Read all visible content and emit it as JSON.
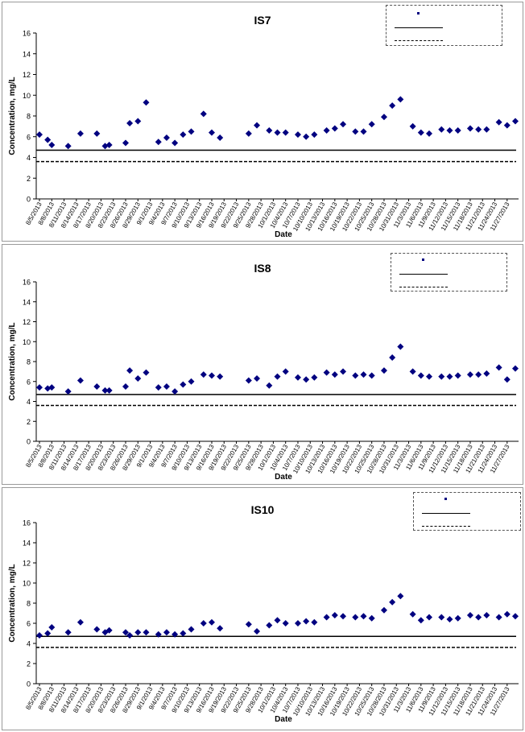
{
  "chart_data": [
    {
      "type": "scatter",
      "title": "IS7",
      "xlabel": "Date",
      "ylabel": "Concentration, mg/L",
      "ylim": [
        0,
        16
      ],
      "yticks": [
        0,
        2,
        4,
        6,
        8,
        10,
        12,
        14,
        16
      ],
      "x_tick_labels": [
        "8/5/2013",
        "8/8/2013",
        "8/11/2013",
        "8/14/2013",
        "8/17/2013",
        "8/20/2013",
        "8/23/2013",
        "8/26/2013",
        "8/29/2013",
        "9/1/2013",
        "9/4/2013",
        "9/7/2013",
        "9/10/2013",
        "9/13/2013",
        "9/16/2013",
        "9/19/2013",
        "9/22/2013",
        "9/25/2013",
        "9/28/2013",
        "10/1/2013",
        "10/4/2013",
        "10/7/2013",
        "10/10/2013",
        "10/13/2013",
        "10/16/2013",
        "10/19/2013",
        "10/22/2013",
        "10/25/2013",
        "10/28/2013",
        "10/31/2013",
        "11/3/2013",
        "11/6/2013",
        "11/9/2013",
        "11/12/2013",
        "11/15/2013",
        "11/18/2013",
        "11/21/2013",
        "11/24/2013",
        "11/27/2013"
      ],
      "x_range": [
        "8/5/2013",
        "11/29/2013"
      ],
      "series": [
        {
          "marker": "diamond",
          "color": "#000080",
          "points": [
            [
              "8/5/2013",
              6.2
            ],
            [
              "8/7/2013",
              5.7
            ],
            [
              "8/8/2013",
              5.2
            ],
            [
              "8/12/2013",
              5.1
            ],
            [
              "8/15/2013",
              6.3
            ],
            [
              "8/19/2013",
              6.3
            ],
            [
              "8/21/2013",
              5.1
            ],
            [
              "8/22/2013",
              5.2
            ],
            [
              "8/26/2013",
              5.4
            ],
            [
              "8/27/2013",
              7.3
            ],
            [
              "8/29/2013",
              7.5
            ],
            [
              "8/31/2013",
              9.3
            ],
            [
              "9/3/2013",
              5.5
            ],
            [
              "9/5/2013",
              5.9
            ],
            [
              "9/7/2013",
              5.4
            ],
            [
              "9/9/2013",
              6.2
            ],
            [
              "9/11/2013",
              6.5
            ],
            [
              "9/14/2013",
              8.2
            ],
            [
              "9/16/2013",
              6.4
            ],
            [
              "9/18/2013",
              5.9
            ],
            [
              "9/25/2013",
              6.3
            ],
            [
              "9/27/2013",
              7.1
            ],
            [
              "9/30/2013",
              6.6
            ],
            [
              "10/2/2013",
              6.4
            ],
            [
              "10/4/2013",
              6.4
            ],
            [
              "10/7/2013",
              6.2
            ],
            [
              "10/9/2013",
              6.0
            ],
            [
              "10/11/2013",
              6.2
            ],
            [
              "10/14/2013",
              6.6
            ],
            [
              "10/16/2013",
              6.8
            ],
            [
              "10/18/2013",
              7.2
            ],
            [
              "10/21/2013",
              6.5
            ],
            [
              "10/23/2013",
              6.5
            ],
            [
              "10/25/2013",
              7.2
            ],
            [
              "10/28/2013",
              7.9
            ],
            [
              "10/30/2013",
              9.0
            ],
            [
              "11/1/2013",
              9.6
            ],
            [
              "11/4/2013",
              7.0
            ],
            [
              "11/6/2013",
              6.4
            ],
            [
              "11/8/2013",
              6.3
            ],
            [
              "11/11/2013",
              6.7
            ],
            [
              "11/13/2013",
              6.6
            ],
            [
              "11/15/2013",
              6.6
            ],
            [
              "11/18/2013",
              6.8
            ],
            [
              "11/20/2013",
              6.7
            ],
            [
              "11/22/2013",
              6.7
            ],
            [
              "11/25/2013",
              7.4
            ],
            [
              "11/27/2013",
              7.1
            ],
            [
              "11/29/2013",
              7.5
            ]
          ]
        }
      ],
      "reference_lines": [
        {
          "style": "solid",
          "y": 4.7
        },
        {
          "style": "dashed",
          "y": 3.6
        }
      ],
      "legend_position": "top-right",
      "legend_labels": [
        "",
        "",
        ""
      ]
    },
    {
      "type": "scatter",
      "title": "IS8",
      "xlabel": "Date",
      "ylabel": "Concentration, mg/L",
      "ylim": [
        0,
        16
      ],
      "yticks": [
        0,
        2,
        4,
        6,
        8,
        10,
        12,
        14,
        16
      ],
      "x_tick_labels": [
        "8/5/2013",
        "8/8/2013",
        "8/11/2013",
        "8/14/2013",
        "8/17/2013",
        "8/20/2013",
        "8/23/2013",
        "8/26/2013",
        "8/29/2013",
        "9/1/2013",
        "9/4/2013",
        "9/7/2013",
        "9/10/2013",
        "9/13/2013",
        "9/16/2013",
        "9/19/2013",
        "9/22/2013",
        "9/25/2013",
        "9/28/2013",
        "10/1/2013",
        "10/4/2013",
        "10/7/2013",
        "10/10/2013",
        "10/13/2013",
        "10/16/2013",
        "10/19/2013",
        "10/22/2013",
        "10/25/2013",
        "10/28/2013",
        "10/31/2013",
        "11/3/2013",
        "11/6/2013",
        "11/9/2013",
        "11/12/2013",
        "11/15/2013",
        "11/18/2013",
        "11/21/2013",
        "11/24/2013",
        "11/27/2013"
      ],
      "x_range": [
        "8/5/2013",
        "11/29/2013"
      ],
      "series": [
        {
          "marker": "diamond",
          "color": "#000080",
          "points": [
            [
              "8/5/2013",
              5.4
            ],
            [
              "8/7/2013",
              5.3
            ],
            [
              "8/8/2013",
              5.4
            ],
            [
              "8/12/2013",
              5.0
            ],
            [
              "8/15/2013",
              6.1
            ],
            [
              "8/19/2013",
              5.5
            ],
            [
              "8/21/2013",
              5.1
            ],
            [
              "8/22/2013",
              5.1
            ],
            [
              "8/26/2013",
              5.5
            ],
            [
              "8/27/2013",
              7.1
            ],
            [
              "8/29/2013",
              6.3
            ],
            [
              "8/31/2013",
              6.9
            ],
            [
              "9/3/2013",
              5.4
            ],
            [
              "9/5/2013",
              5.5
            ],
            [
              "9/7/2013",
              5.0
            ],
            [
              "9/9/2013",
              5.7
            ],
            [
              "9/11/2013",
              6.0
            ],
            [
              "9/14/2013",
              6.7
            ],
            [
              "9/16/2013",
              6.6
            ],
            [
              "9/18/2013",
              6.5
            ],
            [
              "9/25/2013",
              6.1
            ],
            [
              "9/27/2013",
              6.3
            ],
            [
              "9/30/2013",
              5.6
            ],
            [
              "10/2/2013",
              6.5
            ],
            [
              "10/4/2013",
              7.0
            ],
            [
              "10/7/2013",
              6.4
            ],
            [
              "10/9/2013",
              6.2
            ],
            [
              "10/11/2013",
              6.4
            ],
            [
              "10/14/2013",
              6.9
            ],
            [
              "10/16/2013",
              6.7
            ],
            [
              "10/18/2013",
              7.0
            ],
            [
              "10/21/2013",
              6.6
            ],
            [
              "10/23/2013",
              6.7
            ],
            [
              "10/25/2013",
              6.6
            ],
            [
              "10/28/2013",
              7.1
            ],
            [
              "10/30/2013",
              8.4
            ],
            [
              "11/1/2013",
              9.5
            ],
            [
              "11/4/2013",
              7.0
            ],
            [
              "11/6/2013",
              6.6
            ],
            [
              "11/8/2013",
              6.5
            ],
            [
              "11/11/2013",
              6.5
            ],
            [
              "11/13/2013",
              6.5
            ],
            [
              "11/15/2013",
              6.6
            ],
            [
              "11/18/2013",
              6.7
            ],
            [
              "11/20/2013",
              6.7
            ],
            [
              "11/22/2013",
              6.8
            ],
            [
              "11/25/2013",
              7.4
            ],
            [
              "11/27/2013",
              6.2
            ],
            [
              "11/29/2013",
              7.3
            ]
          ]
        }
      ],
      "reference_lines": [
        {
          "style": "solid",
          "y": 4.7
        },
        {
          "style": "dashed",
          "y": 3.6
        }
      ],
      "legend_position": "top-right",
      "legend_labels": [
        "",
        "",
        ""
      ]
    },
    {
      "type": "scatter",
      "title": "IS10",
      "xlabel": "Date",
      "ylabel": "Concentration, mg/L",
      "ylim": [
        0,
        16
      ],
      "yticks": [
        0,
        2,
        4,
        6,
        8,
        10,
        12,
        14,
        16
      ],
      "x_tick_labels": [
        "8/5/2013",
        "8/8/2013",
        "8/11/2013",
        "8/14/2013",
        "8/17/2013",
        "8/20/2013",
        "8/23/2013",
        "8/26/2013",
        "8/29/2013",
        "9/1/2013",
        "9/4/2013",
        "9/7/2013",
        "9/10/2013",
        "9/13/2013",
        "9/16/2013",
        "9/19/2013",
        "9/22/2013",
        "9/25/2013",
        "9/28/2013",
        "10/1/2013",
        "10/4/2013",
        "10/7/2013",
        "10/10/2013",
        "10/13/2013",
        "10/16/2013",
        "10/19/2013",
        "10/22/2013",
        "10/25/2013",
        "10/28/2013",
        "10/31/2013",
        "11/3/2013",
        "11/6/2013",
        "11/9/2013",
        "11/12/2013",
        "11/15/2013",
        "11/18/2013",
        "11/21/2013",
        "11/24/2013",
        "11/27/2013"
      ],
      "x_range": [
        "8/5/2013",
        "11/29/2013"
      ],
      "series": [
        {
          "marker": "diamond",
          "color": "#000080",
          "points": [
            [
              "8/5/2013",
              4.8
            ],
            [
              "8/7/2013",
              5.0
            ],
            [
              "8/8/2013",
              5.6
            ],
            [
              "8/12/2013",
              5.1
            ],
            [
              "8/15/2013",
              6.1
            ],
            [
              "8/19/2013",
              5.4
            ],
            [
              "8/21/2013",
              5.1
            ],
            [
              "8/22/2013",
              5.3
            ],
            [
              "8/26/2013",
              5.1
            ],
            [
              "8/27/2013",
              4.8
            ],
            [
              "8/29/2013",
              5.1
            ],
            [
              "8/31/2013",
              5.1
            ],
            [
              "9/3/2013",
              4.9
            ],
            [
              "9/5/2013",
              5.1
            ],
            [
              "9/7/2013",
              4.9
            ],
            [
              "9/9/2013",
              5.0
            ],
            [
              "9/11/2013",
              5.4
            ],
            [
              "9/14/2013",
              6.0
            ],
            [
              "9/16/2013",
              6.1
            ],
            [
              "9/18/2013",
              5.5
            ],
            [
              "9/25/2013",
              5.9
            ],
            [
              "9/27/2013",
              5.2
            ],
            [
              "9/30/2013",
              5.8
            ],
            [
              "10/2/2013",
              6.3
            ],
            [
              "10/4/2013",
              6.0
            ],
            [
              "10/7/2013",
              6.0
            ],
            [
              "10/9/2013",
              6.2
            ],
            [
              "10/11/2013",
              6.1
            ],
            [
              "10/14/2013",
              6.6
            ],
            [
              "10/16/2013",
              6.8
            ],
            [
              "10/18/2013",
              6.7
            ],
            [
              "10/21/2013",
              6.6
            ],
            [
              "10/23/2013",
              6.7
            ],
            [
              "10/25/2013",
              6.5
            ],
            [
              "10/28/2013",
              7.3
            ],
            [
              "10/30/2013",
              8.1
            ],
            [
              "11/1/2013",
              8.7
            ],
            [
              "11/4/2013",
              6.9
            ],
            [
              "11/6/2013",
              6.3
            ],
            [
              "11/8/2013",
              6.6
            ],
            [
              "11/11/2013",
              6.6
            ],
            [
              "11/13/2013",
              6.4
            ],
            [
              "11/15/2013",
              6.5
            ],
            [
              "11/18/2013",
              6.8
            ],
            [
              "11/20/2013",
              6.6
            ],
            [
              "11/22/2013",
              6.8
            ],
            [
              "11/25/2013",
              6.6
            ],
            [
              "11/27/2013",
              6.9
            ],
            [
              "11/29/2013",
              6.7
            ]
          ]
        }
      ],
      "reference_lines": [
        {
          "style": "solid",
          "y": 4.7
        },
        {
          "style": "dashed",
          "y": 3.6
        }
      ],
      "legend_position": "top-right",
      "legend_labels": [
        "",
        "",
        ""
      ]
    }
  ]
}
